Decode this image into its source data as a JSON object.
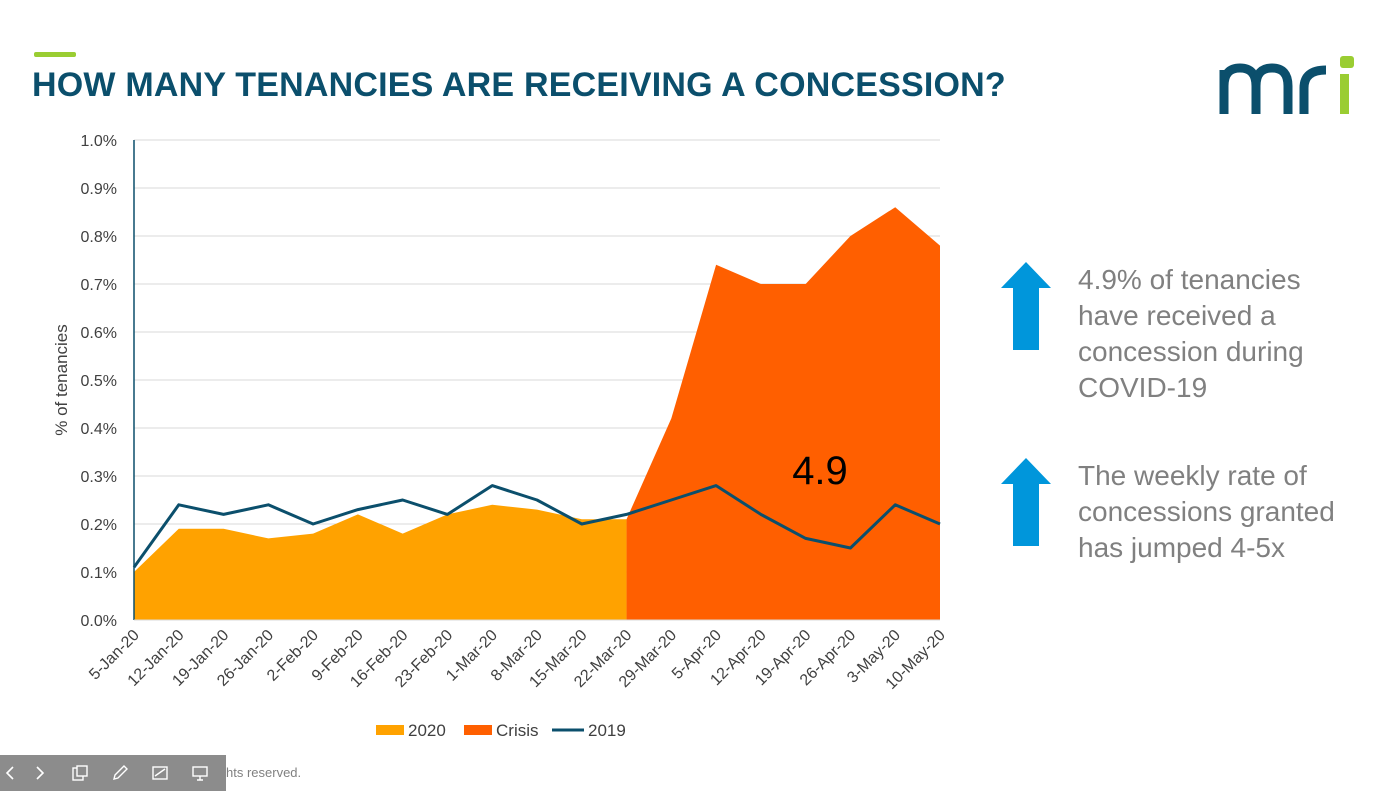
{
  "slide": {
    "title": "HOW MANY TENANCIES ARE RECEIVING A CONCESSION?",
    "footer": "hts reserved."
  },
  "logo": {
    "text": "mri",
    "color_primary": "#0B4F6C",
    "color_accent": "#9ACD32"
  },
  "colors": {
    "c2020": "#FFA200",
    "crisis": "#FF5F00",
    "c2019": "#0B4F6C",
    "arrow": "#0096DB",
    "accent": "#9ACD32"
  },
  "callouts": [
    {
      "text": "4.9% of tenancies have received a concession during COVID-19",
      "icon": "up-arrow-icon"
    },
    {
      "text": "The weekly rate of concessions granted has jumped 4-5x",
      "icon": "up-arrow-icon"
    }
  ],
  "toolbar": {
    "icons": [
      "prev-icon",
      "next-icon",
      "slides-icon",
      "pen-icon",
      "subtitles-icon",
      "presenter-icon"
    ]
  },
  "chart_data": {
    "type": "area",
    "title": "",
    "ylabel": "% of tenancies",
    "xlabel": "",
    "ylim": [
      0,
      1.0
    ],
    "yticks": [
      "0.0%",
      "0.1%",
      "0.2%",
      "0.3%",
      "0.4%",
      "0.5%",
      "0.6%",
      "0.7%",
      "0.8%",
      "0.9%",
      "1.0%"
    ],
    "categories": [
      "5-Jan-20",
      "12-Jan-20",
      "19-Jan-20",
      "26-Jan-20",
      "2-Feb-20",
      "9-Feb-20",
      "16-Feb-20",
      "23-Feb-20",
      "1-Mar-20",
      "8-Mar-20",
      "15-Mar-20",
      "22-Mar-20",
      "29-Mar-20",
      "5-Apr-20",
      "12-Apr-20",
      "19-Apr-20",
      "26-Apr-20",
      "3-May-20",
      "10-May-20"
    ],
    "series": [
      {
        "name": "2020",
        "kind": "area",
        "values": [
          0.1,
          0.19,
          0.19,
          0.17,
          0.18,
          0.22,
          0.18,
          0.22,
          0.24,
          0.23,
          0.21,
          0.21,
          null,
          null,
          null,
          null,
          null,
          null,
          null
        ]
      },
      {
        "name": "Crisis",
        "kind": "area",
        "values": [
          null,
          null,
          null,
          null,
          null,
          null,
          null,
          null,
          null,
          null,
          null,
          0.21,
          0.42,
          0.74,
          0.7,
          0.7,
          0.8,
          0.86,
          0.78
        ]
      },
      {
        "name": "2019",
        "kind": "line",
        "values": [
          0.11,
          0.24,
          0.22,
          0.24,
          0.2,
          0.23,
          0.25,
          0.22,
          0.28,
          0.25,
          0.2,
          0.22,
          0.25,
          0.28,
          0.22,
          0.17,
          0.15,
          0.24,
          0.2
        ]
      }
    ],
    "legend": [
      "2020",
      "Crisis",
      "2019"
    ],
    "legend_position": "bottom",
    "annotation": "4.9",
    "grid": true
  }
}
